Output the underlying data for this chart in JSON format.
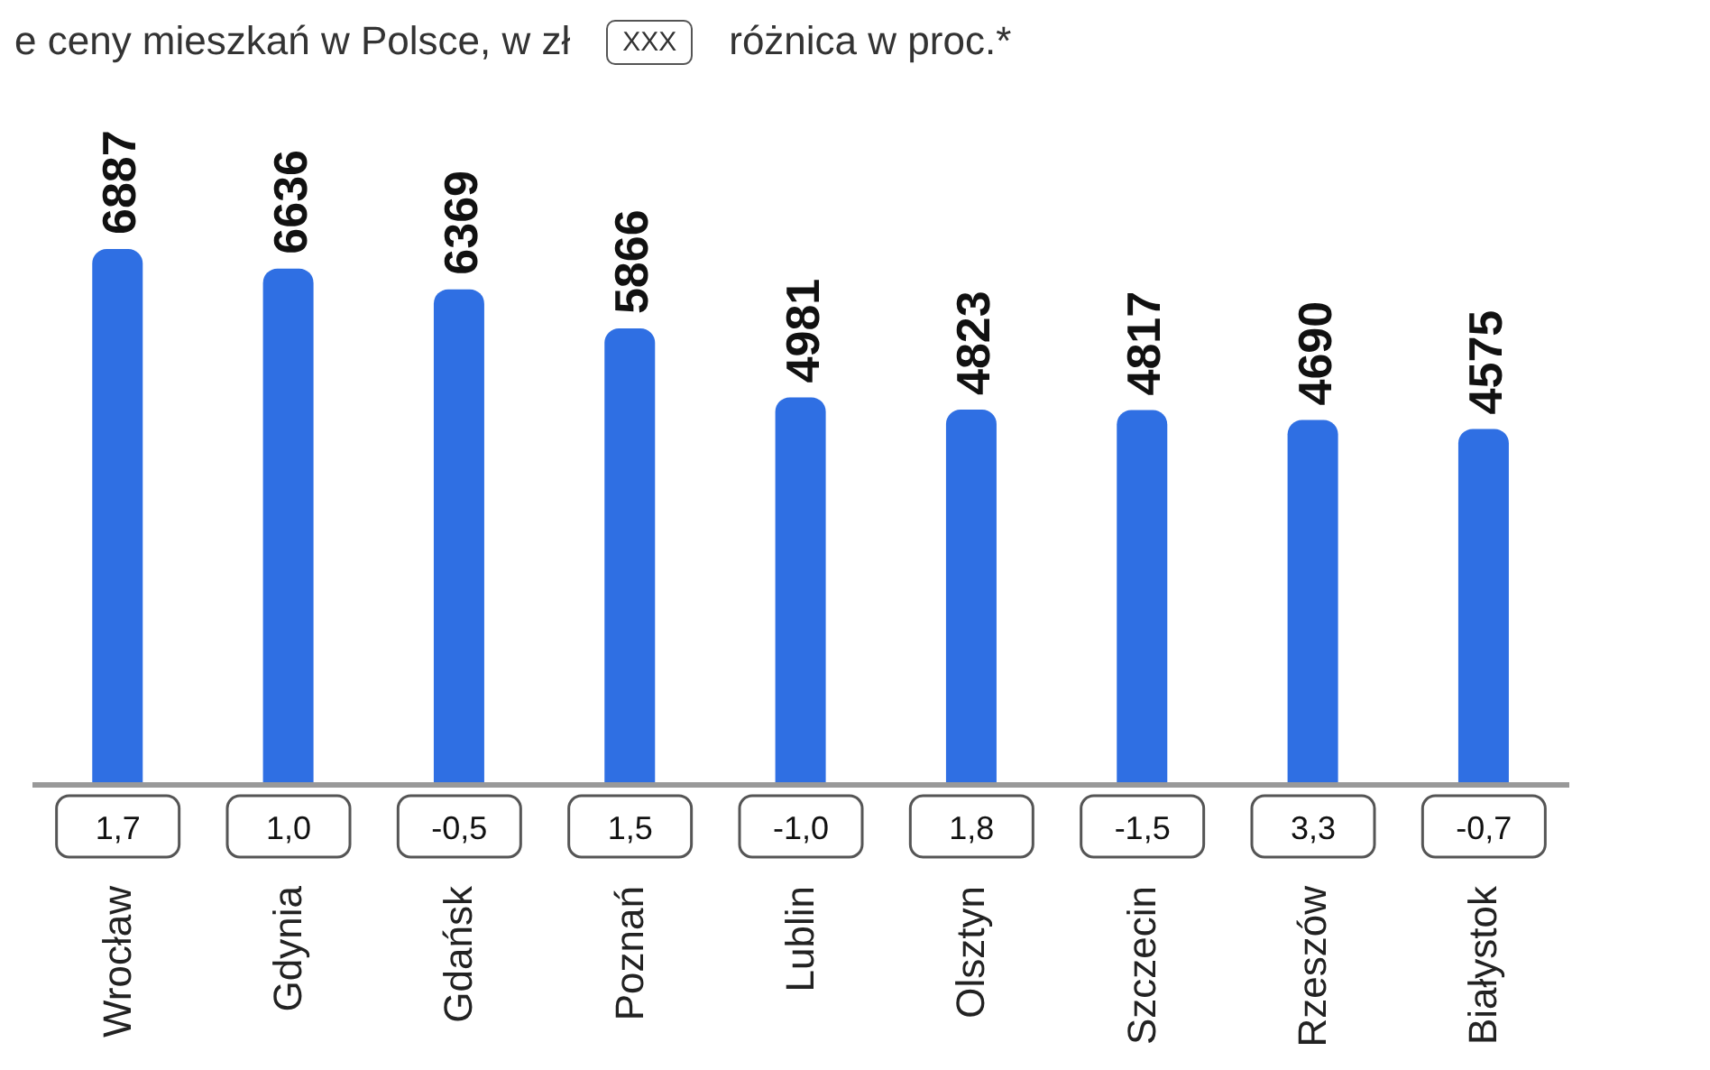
{
  "chart_data": {
    "type": "bar",
    "title": "e ceny mieszkań w Polsce, w zł",
    "categories": [
      "Wrocław",
      "Gdynia",
      "Gdańsk",
      "Poznań",
      "Lublin",
      "Olsztyn",
      "Szczecin",
      "Rzeszów",
      "Białystok"
    ],
    "values": [
      6887,
      6636,
      6369,
      5866,
      4981,
      4823,
      4817,
      4690,
      4575
    ],
    "color": "#2f6fe3",
    "data_labels": true,
    "grid": false,
    "legend": false,
    "annotations": [
      "XXX",
      "różnica w proc.*",
      "1,7",
      "1,0",
      "-0,5",
      "1,5",
      "-1,0",
      "1,8",
      "-1,5",
      "3,3",
      "-0,7"
    ]
  }
}
